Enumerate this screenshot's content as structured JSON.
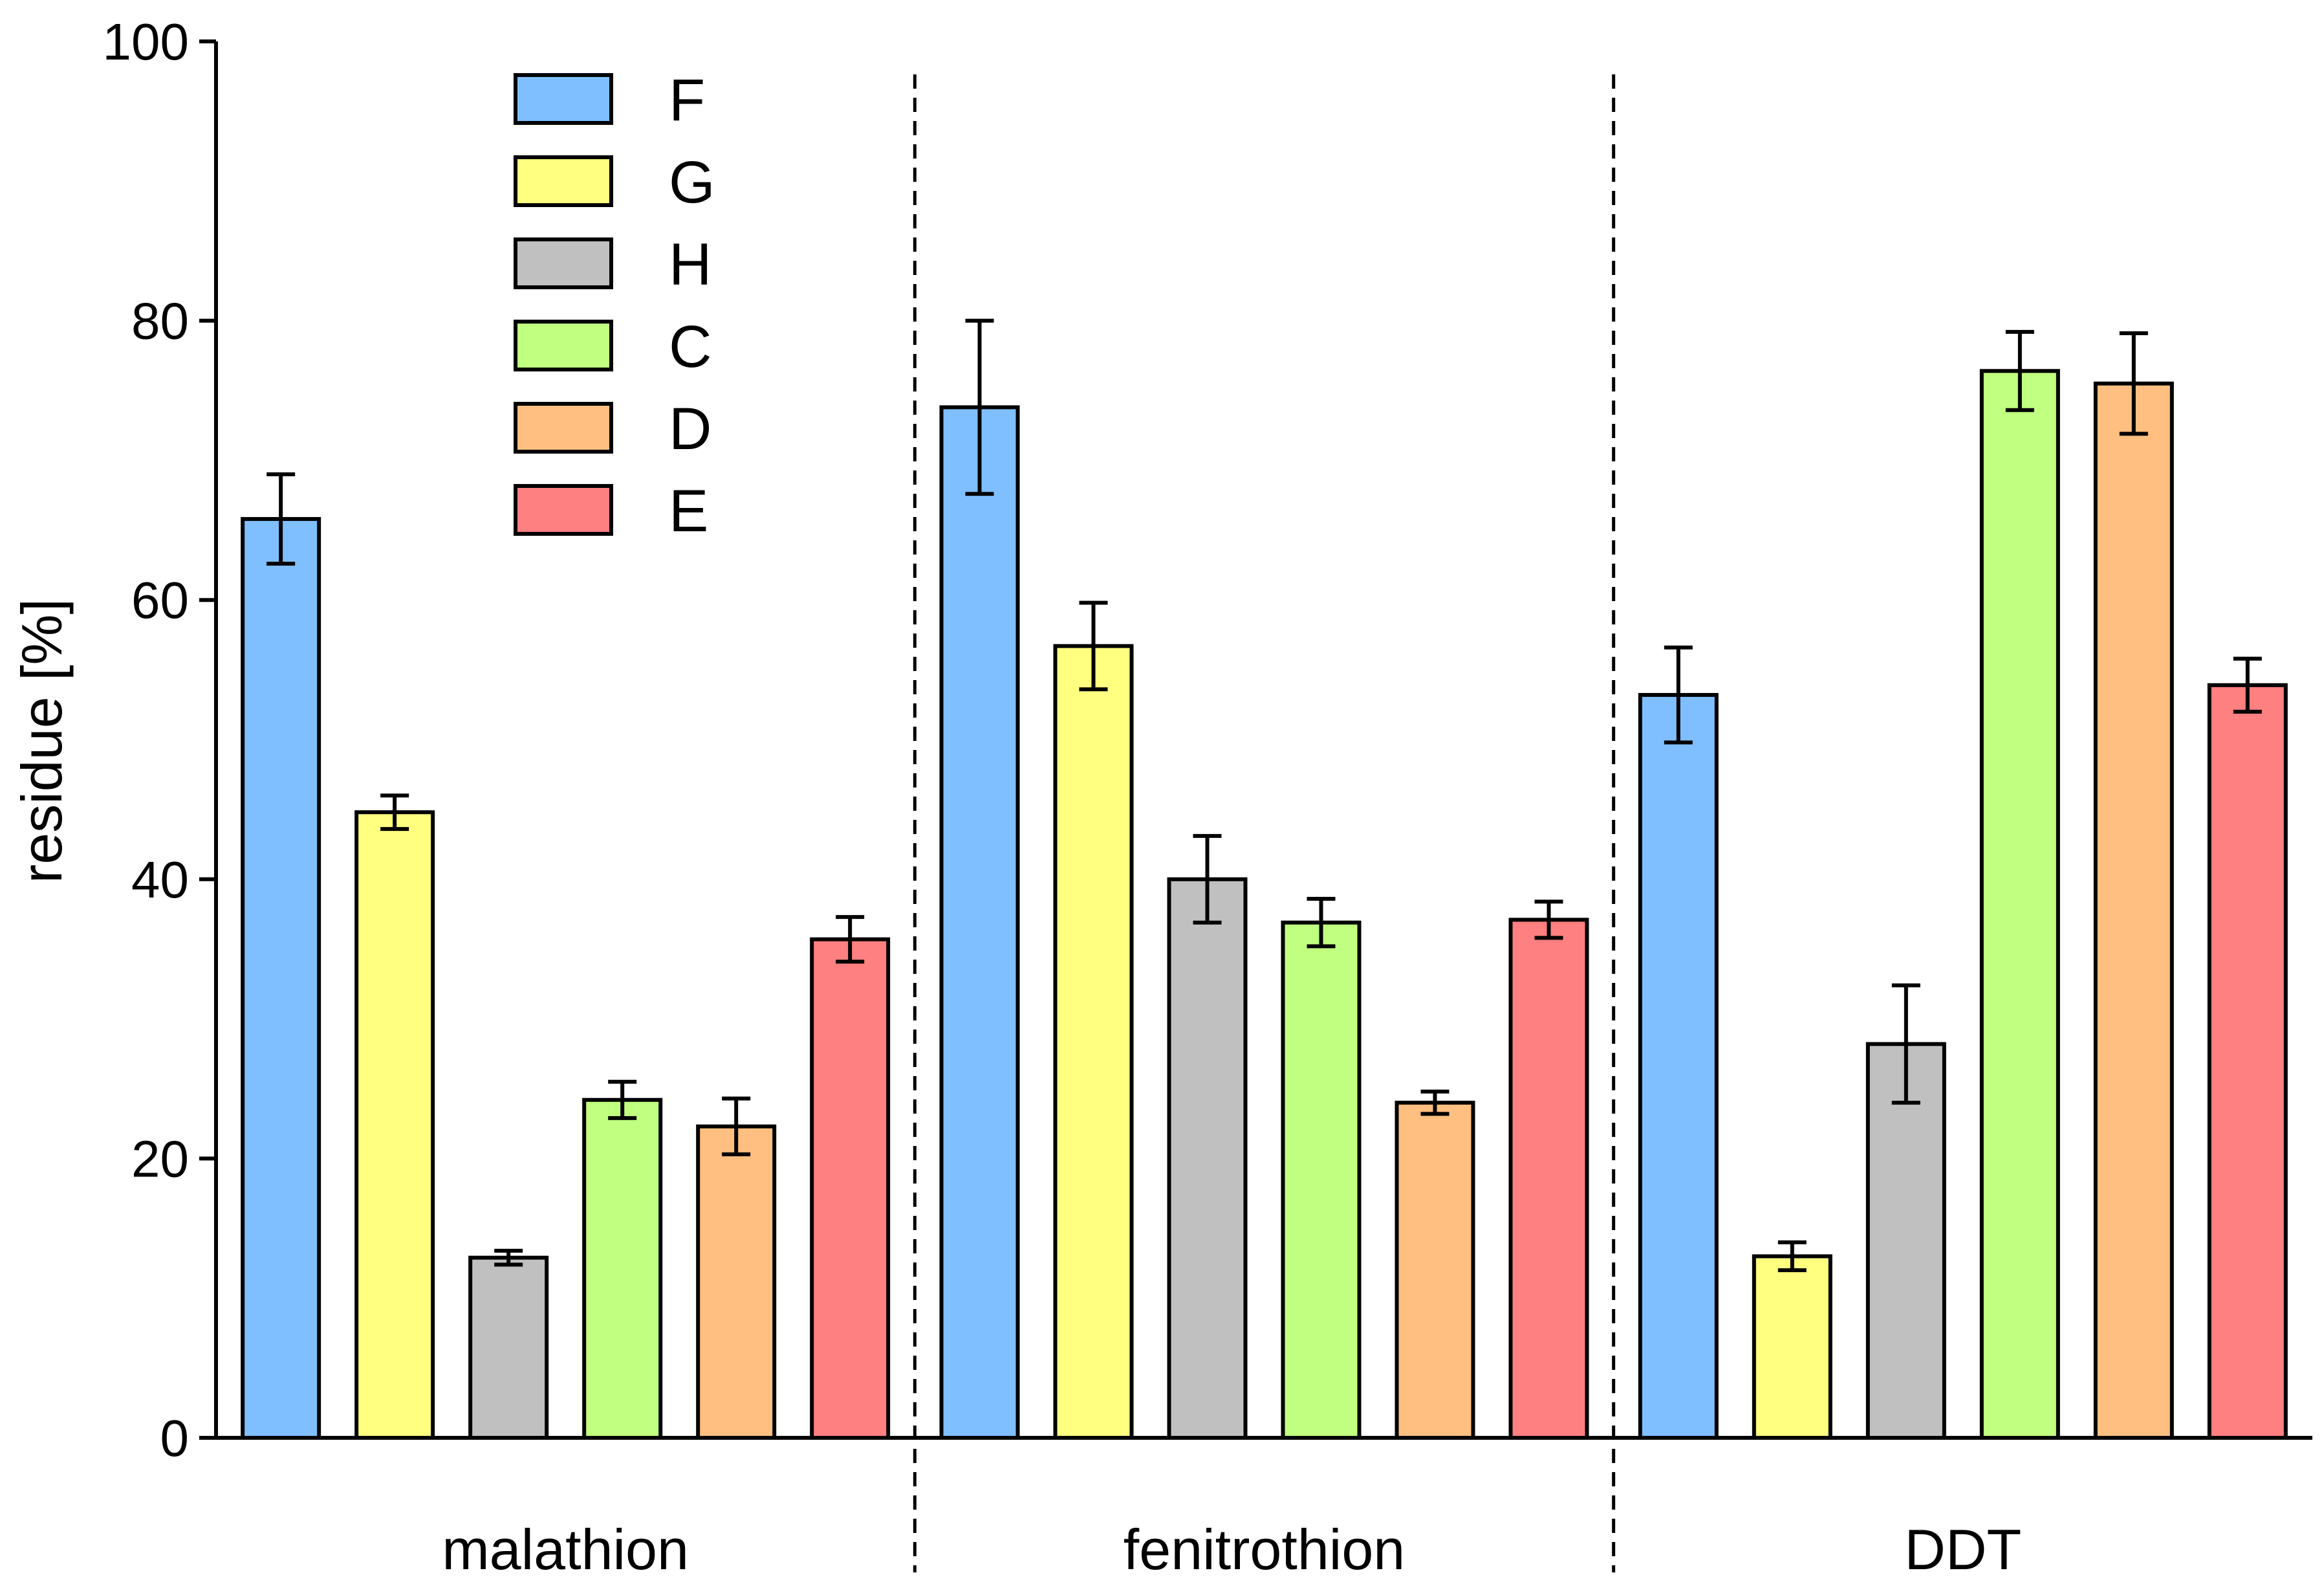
{
  "chart_data": {
    "type": "bar",
    "title": "",
    "xlabel": "",
    "ylabel": "residue [%]",
    "ylim": [
      0,
      100
    ],
    "yticks": [
      "0",
      "20",
      "40",
      "60",
      "80",
      "100"
    ],
    "categories": [
      "malathion",
      "fenitrothion",
      "DDT"
    ],
    "legend_position": "top-left",
    "grid": false,
    "group_separators": "dashed",
    "series": [
      {
        "name": "F",
        "color": "#80BFFF",
        "values": [
          65.8,
          73.8,
          53.2
        ],
        "errors": [
          3.2,
          6.2,
          3.4
        ]
      },
      {
        "name": "G",
        "color": "#FFFF80",
        "values": [
          44.8,
          56.7,
          13.0
        ],
        "errors": [
          1.2,
          3.1,
          1.0
        ]
      },
      {
        "name": "H",
        "color": "#C0C0C0",
        "values": [
          12.9,
          40.0,
          28.2
        ],
        "errors": [
          0.5,
          3.1,
          4.2
        ]
      },
      {
        "name": "C",
        "color": "#C0FF80",
        "values": [
          24.2,
          36.9,
          76.4
        ],
        "errors": [
          1.3,
          1.7,
          2.8
        ]
      },
      {
        "name": "D",
        "color": "#FFBF80",
        "values": [
          22.3,
          24.0,
          75.5
        ],
        "errors": [
          2.0,
          0.8,
          3.6
        ]
      },
      {
        "name": "E",
        "color": "#FF8080",
        "values": [
          35.7,
          37.1,
          53.9
        ],
        "errors": [
          1.6,
          1.3,
          1.9
        ]
      }
    ]
  }
}
